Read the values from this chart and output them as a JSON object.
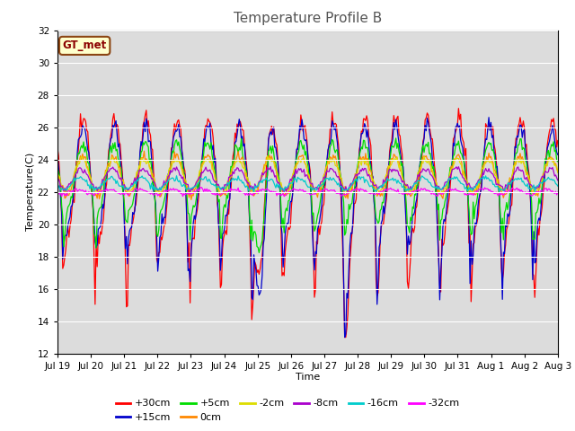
{
  "title": "Temperature Profile B",
  "xlabel": "Time",
  "ylabel": "Temperature(C)",
  "ylim": [
    12,
    32
  ],
  "yticks": [
    12,
    14,
    16,
    18,
    20,
    22,
    24,
    26,
    28,
    30,
    32
  ],
  "bg_color": "#dcdcdc",
  "legend_label": "GT_met",
  "legend_box_color": "#ffffcc",
  "legend_box_edge": "#8b4513",
  "legend_text_color": "#8b0000",
  "series_colors": {
    "+30cm": "#ff0000",
    "+15cm": "#0000cc",
    "+5cm": "#00dd00",
    "0cm": "#ff8800",
    "-2cm": "#dddd00",
    "-8cm": "#aa00cc",
    "-16cm": "#00cccc",
    "-32cm": "#ff00ff"
  },
  "tick_labels": [
    "Jul 19",
    "Jul 20",
    "Jul 21",
    "Jul 22",
    "Jul 23",
    "Jul 24",
    "Jul 25",
    "Jul 26",
    "Jul 27",
    "Jul 28",
    "Jul 29",
    "Jul 30",
    "Jul 31",
    "Aug 1",
    "Aug 2",
    "Aug 3"
  ],
  "n_points": 480,
  "hours_per_day": 32
}
